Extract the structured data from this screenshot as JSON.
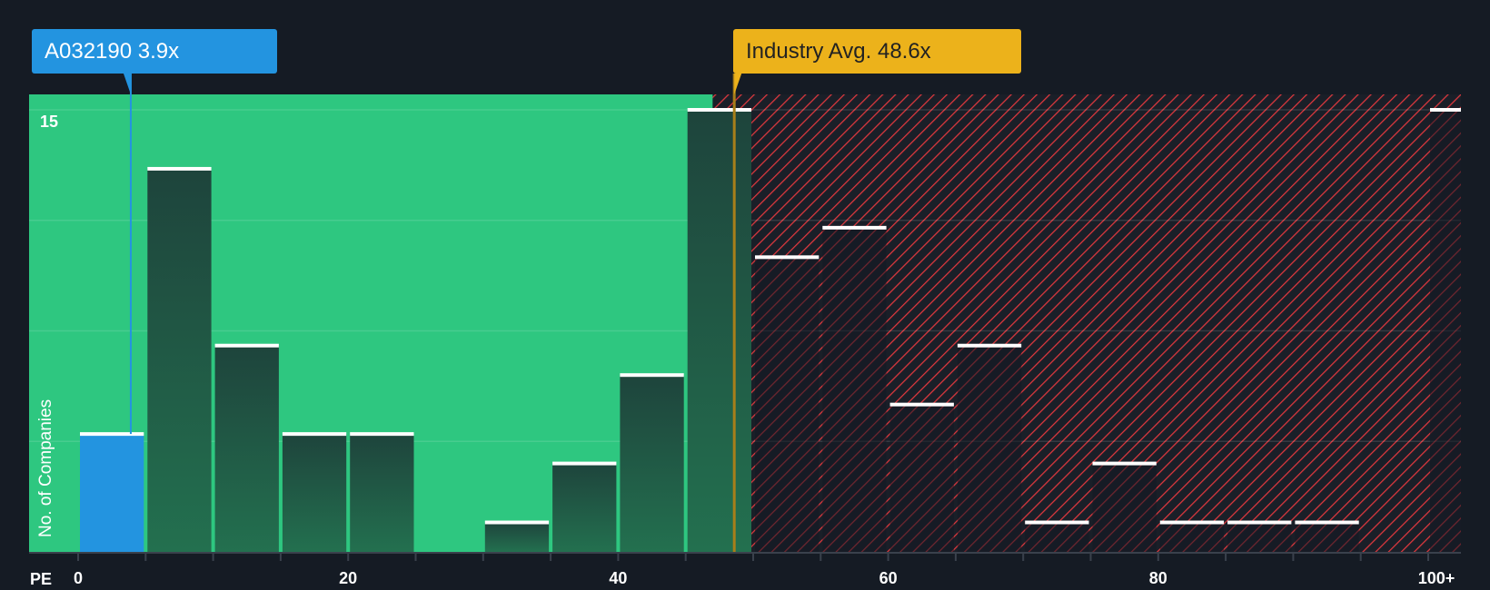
{
  "chart_data": {
    "type": "bar",
    "title": "",
    "xlabel": "PE",
    "ylabel": "No. of Companies",
    "bin_width": 5,
    "bins": [
      "0-5",
      "5-10",
      "10-15",
      "15-20",
      "20-25",
      "25-30",
      "30-35",
      "35-40",
      "40-45",
      "45-50",
      "50-55",
      "55-60",
      "60-65",
      "65-70",
      "70-75",
      "75-80",
      "80-85",
      "85-90",
      "90-95",
      "95-100",
      "100+"
    ],
    "values": [
      4,
      13,
      7,
      4,
      4,
      0,
      1,
      3,
      6,
      15,
      10,
      11,
      5,
      7,
      1,
      3,
      1,
      1,
      1,
      0,
      15
    ],
    "highlight_bin": 0,
    "ylim": [
      0,
      15.5
    ],
    "y_ticks": [
      {
        "value": 15,
        "label": "15"
      }
    ],
    "y_gridlines": [
      3.75,
      7.5,
      11.25,
      15
    ],
    "x_ticks": [
      {
        "value": 0,
        "label": "0"
      },
      {
        "value": 20,
        "label": "20"
      },
      {
        "value": 40,
        "label": "40"
      },
      {
        "value": 60,
        "label": "60"
      },
      {
        "value": 80,
        "label": "80"
      },
      {
        "value": 100,
        "label": "100+"
      }
    ],
    "company": {
      "label": "A032190 3.9x",
      "value": 3.9
    },
    "industry_avg": {
      "label": "Industry Avg. 48.6x",
      "value": 48.6
    },
    "fair_zone_end": 47,
    "colors": {
      "green": "#2ec780",
      "blue": "#2394e0",
      "yellow": "#ecb21b",
      "red": "#e0383e",
      "background": "#151b24"
    }
  }
}
